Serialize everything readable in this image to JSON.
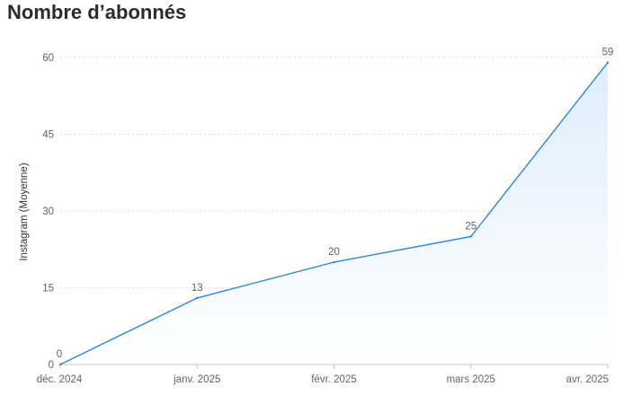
{
  "page": {
    "title": "Nombre d’abonnés"
  },
  "chart_data": {
    "type": "area",
    "title": "Nombre d’abonnés",
    "xlabel": "",
    "ylabel": "Instagram (Moyenne)",
    "categories": [
      "déc. 2024",
      "janv. 2025",
      "févr. 2025",
      "mars 2025",
      "avr. 2025"
    ],
    "series": [
      {
        "name": "Instagram (Moyenne)",
        "values": [
          0,
          13,
          20,
          25,
          59
        ]
      }
    ],
    "ylim": [
      0,
      60
    ],
    "yticks": [
      0,
      15,
      30,
      45,
      60
    ],
    "grid": true,
    "legend": "none",
    "colors": {
      "line": "#2f86d4",
      "fill_top": "#dcecfb",
      "grid": "#dcdcdc",
      "axis": "#c8c8c8"
    }
  }
}
